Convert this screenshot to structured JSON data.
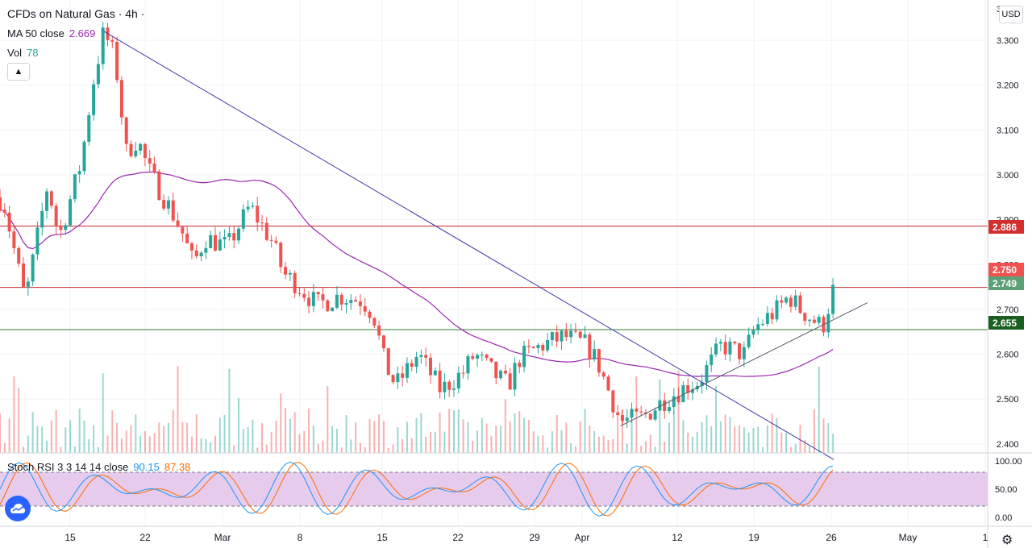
{
  "header": {
    "symbol_title": "CFDs on Natural Gas · 4h ·",
    "ma_label": "MA 50 close",
    "ma_value": "2.669",
    "vol_label": "Vol",
    "vol_value": "78",
    "currency": "USD"
  },
  "stoch": {
    "label": "Stoch RSI 3 3 14 14 close",
    "k_value": "90.15",
    "d_value": "87.38"
  },
  "colors": {
    "up": "#26a69a",
    "down": "#ef5350",
    "ma": "#9c27b0",
    "trendline": "#3a3aa8",
    "support_line": "#2e7d32",
    "resistance_line": "#c62828",
    "stoch_k": "#2196f3",
    "stoch_d": "#ff6d00",
    "stoch_band": "#e1bee7"
  },
  "price_tags": [
    {
      "label": "2.886",
      "color": "#d32f2f"
    },
    {
      "label": "2.750",
      "color": "#ef5350"
    },
    {
      "label": "2.749",
      "color": "#5d9f76"
    },
    {
      "label": "2.655",
      "color": "#1b5e20"
    }
  ],
  "chart_data": {
    "type": "candlestick",
    "y_ticks": [
      "3.300",
      "3.200",
      "3.100",
      "3.000",
      "2.900",
      "2.800",
      "2.700",
      "2.600",
      "2.500",
      "2.400"
    ],
    "y_top_partial": "3",
    "ylim": [
      2.38,
      3.39
    ],
    "x_ticks": [
      "15",
      "22",
      "Mar",
      "8",
      "15",
      "22",
      "29",
      "Apr",
      "12",
      "19",
      "26",
      "May",
      "1"
    ],
    "stoch_ticks": [
      "100.00",
      "50.00",
      "0.00"
    ],
    "stoch_band": [
      20,
      80
    ],
    "horizontal_levels": [
      {
        "price": 2.886,
        "role": "resistance"
      },
      {
        "price": 2.749,
        "role": "resistance"
      },
      {
        "price": 2.655,
        "role": "support"
      }
    ],
    "trendlines": [
      {
        "from": [
          "Feb 18",
          3.32
        ],
        "to": [
          "Apr 24",
          2.365
        ],
        "role": "downtrend"
      },
      {
        "from": [
          "Apr 5",
          2.44
        ],
        "to": [
          "Apr 27",
          2.715
        ],
        "role": "uptrend"
      }
    ],
    "waypoints": [
      [
        "Feb 9",
        2.95
      ],
      [
        "Feb 11",
        2.72
      ],
      [
        "Feb 13",
        2.98
      ],
      [
        "Feb 14",
        2.86
      ],
      [
        "Feb 16",
        3.03
      ],
      [
        "Feb 17",
        3.2
      ],
      [
        "Feb 18",
        3.32
      ],
      [
        "Feb 19",
        3.26
      ],
      [
        "Feb 20",
        3.05
      ],
      [
        "Feb 21",
        3.08
      ],
      [
        "Feb 22",
        3.01
      ],
      [
        "Feb 24",
        2.92
      ],
      [
        "Feb 25",
        2.87
      ],
      [
        "Feb 26",
        2.8
      ],
      [
        "Feb 27",
        2.86
      ],
      [
        "Mar 1",
        2.84
      ],
      [
        "Mar 3",
        2.93
      ],
      [
        "Mar 5",
        2.85
      ],
      [
        "Mar 6",
        2.78
      ],
      [
        "Mar 7",
        2.76
      ],
      [
        "Mar 9",
        2.71
      ],
      [
        "Mar 11",
        2.73
      ],
      [
        "Mar 13",
        2.72
      ],
      [
        "Mar 14",
        2.69
      ],
      [
        "Mar 15",
        2.58
      ],
      [
        "Mar 16",
        2.53
      ],
      [
        "Mar 18",
        2.6
      ],
      [
        "Mar 20",
        2.52
      ],
      [
        "Mar 22",
        2.56
      ],
      [
        "Mar 23",
        2.6
      ],
      [
        "Mar 25",
        2.55
      ],
      [
        "Mar 26",
        2.53
      ],
      [
        "Mar 27",
        2.59
      ],
      [
        "Mar 29",
        2.62
      ],
      [
        "Mar 31",
        2.64
      ],
      [
        "Apr 2",
        2.62
      ],
      [
        "Apr 3",
        2.58
      ],
      [
        "Apr 5",
        2.45
      ],
      [
        "Apr 7",
        2.46
      ],
      [
        "Apr 9",
        2.5
      ],
      [
        "Apr 11",
        2.53
      ],
      [
        "Apr 12",
        2.54
      ],
      [
        "Apr 14",
        2.62
      ],
      [
        "Apr 16",
        2.6
      ],
      [
        "Apr 17",
        2.66
      ],
      [
        "Apr 19",
        2.7
      ],
      [
        "Apr 20",
        2.73
      ],
      [
        "Apr 21",
        2.7
      ],
      [
        "Apr 22",
        2.68
      ],
      [
        "Apr 23",
        2.66
      ],
      [
        "Apr 24",
        2.749
      ]
    ]
  }
}
